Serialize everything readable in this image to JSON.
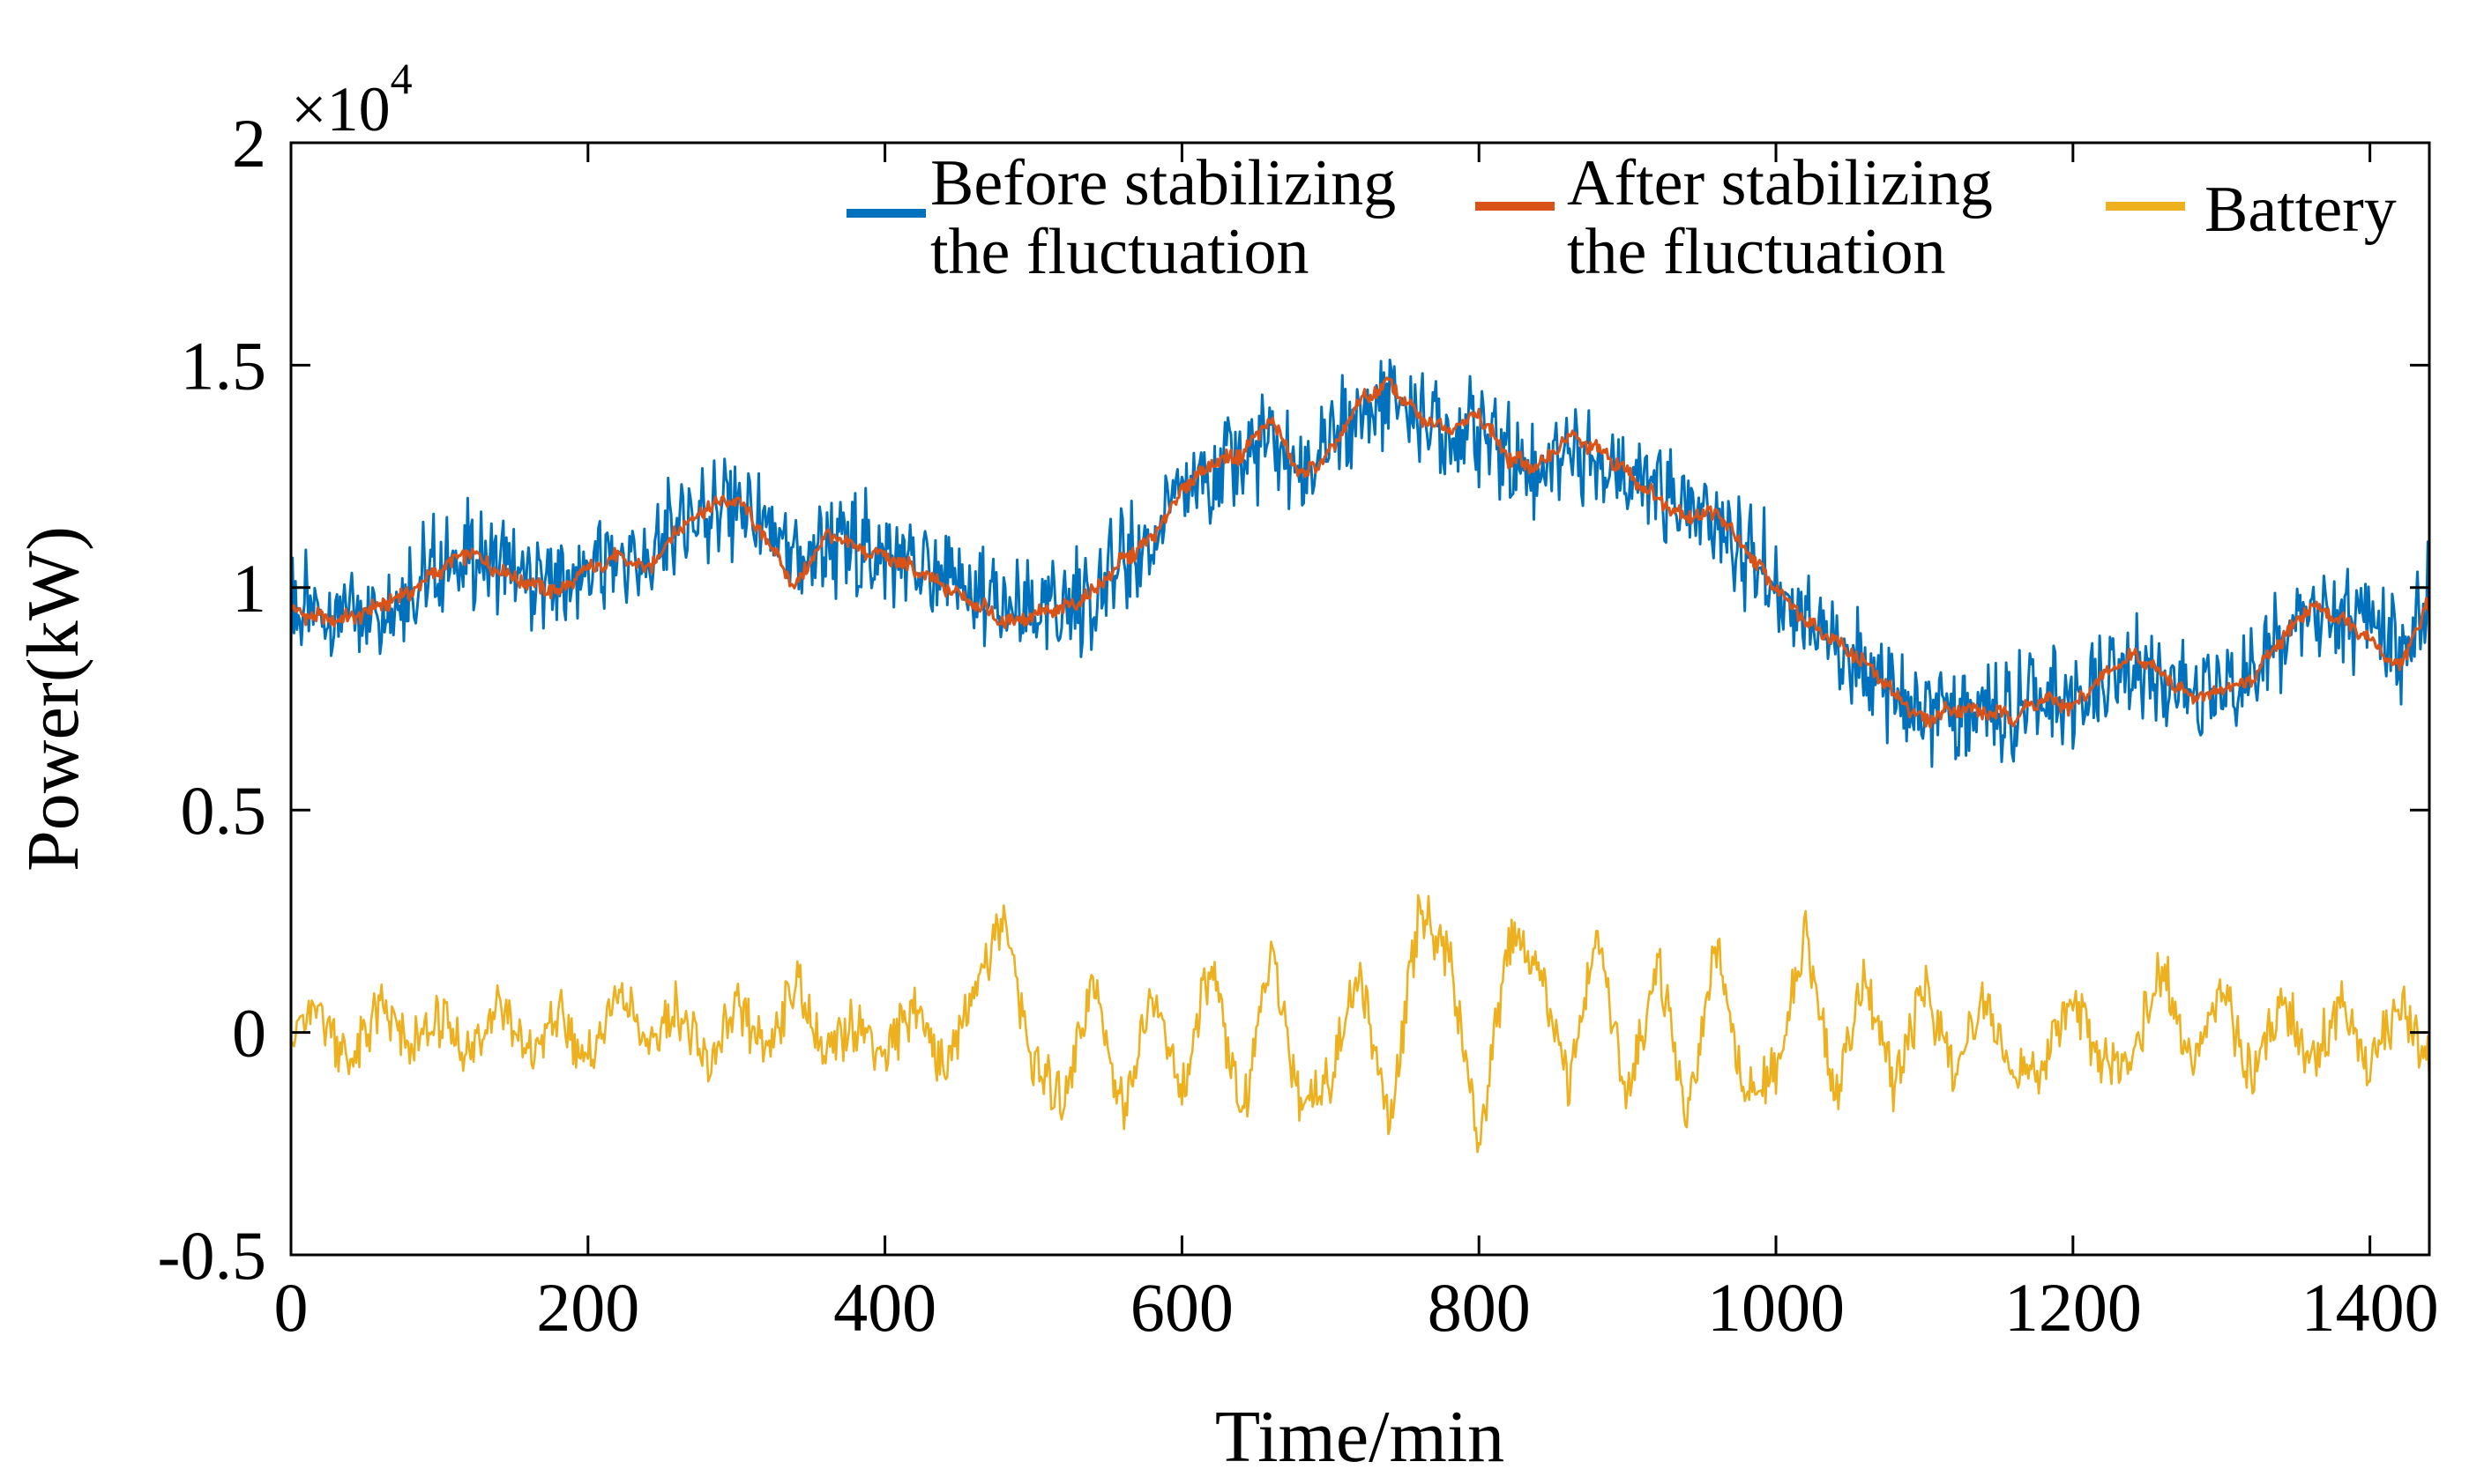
{
  "chart_data": {
    "type": "line",
    "title": "",
    "xlabel": "Time/min",
    "ylabel": "Power(kW)",
    "xlim": [
      0,
      1440
    ],
    "ylim": [
      -5000,
      20000
    ],
    "y_exponent_label": "×10",
    "y_exponent_power": "4",
    "xticks": [
      0,
      200,
      400,
      600,
      800,
      1000,
      1200,
      1400
    ],
    "xtick_labels": [
      "0",
      "200",
      "400",
      "600",
      "800",
      "1000",
      "1200",
      "1400"
    ],
    "yticks": [
      -5000,
      0,
      5000,
      10000,
      15000,
      20000
    ],
    "ytick_labels": [
      "-0.5",
      "0",
      "0.5",
      "1",
      "1.5",
      "2"
    ],
    "grid": false,
    "legend_position": "top-right",
    "series": [
      {
        "name": "Before stabilizing the fluctuation",
        "legend_lines": [
          "Before stabilizing",
          "the fluctuation"
        ],
        "color": "#0072BD",
        "x": [
          0,
          20,
          40,
          60,
          80,
          100,
          120,
          140,
          160,
          180,
          200,
          220,
          240,
          260,
          280,
          300,
          320,
          340,
          360,
          380,
          400,
          420,
          440,
          460,
          480,
          500,
          520,
          540,
          560,
          580,
          600,
          620,
          640,
          660,
          680,
          700,
          720,
          740,
          760,
          780,
          800,
          820,
          840,
          860,
          880,
          900,
          920,
          940,
          960,
          980,
          1000,
          1020,
          1040,
          1060,
          1080,
          1100,
          1120,
          1140,
          1160,
          1180,
          1200,
          1220,
          1240,
          1260,
          1280,
          1300,
          1320,
          1340,
          1360,
          1380,
          1400,
          1420,
          1440
        ],
        "values": [
          9600,
          9300,
          9400,
          9600,
          10000,
          10400,
          10700,
          10500,
          10200,
          10000,
          10400,
          10600,
          10500,
          11400,
          11800,
          11900,
          11200,
          10400,
          11000,
          10900,
          10700,
          10500,
          10200,
          9800,
          9400,
          9300,
          9600,
          9800,
          10600,
          11000,
          12200,
          12600,
          12900,
          13300,
          12500,
          13200,
          13800,
          14300,
          13900,
          13500,
          13600,
          13000,
          12600,
          13200,
          13000,
          12600,
          12100,
          11700,
          11500,
          10800,
          10100,
          9400,
          8600,
          8100,
          7500,
          7000,
          7200,
          7300,
          7100,
          7600,
          7400,
          7900,
          8300,
          8000,
          7600,
          7700,
          8200,
          8800,
          9500,
          9200,
          9300,
          8400,
          9800
        ]
      },
      {
        "name": "After stabilizing the fluctuation",
        "legend_lines": [
          "After stabilizing",
          "the fluctuation"
        ],
        "color": "#D95319",
        "x": [
          0,
          20,
          40,
          60,
          80,
          100,
          120,
          140,
          160,
          180,
          200,
          220,
          240,
          260,
          280,
          300,
          320,
          340,
          360,
          380,
          400,
          420,
          440,
          460,
          480,
          500,
          520,
          540,
          560,
          580,
          600,
          620,
          640,
          660,
          680,
          700,
          720,
          740,
          760,
          780,
          800,
          820,
          840,
          860,
          880,
          900,
          920,
          940,
          960,
          980,
          1000,
          1020,
          1040,
          1060,
          1080,
          1100,
          1120,
          1140,
          1160,
          1180,
          1200,
          1220,
          1240,
          1260,
          1280,
          1300,
          1320,
          1340,
          1360,
          1380,
          1400,
          1420,
          1440
        ],
        "values": [
          9500,
          9300,
          9300,
          9600,
          9900,
          10400,
          10800,
          10400,
          10100,
          9900,
          10400,
          10700,
          10400,
          11300,
          11800,
          12000,
          11100,
          10000,
          11200,
          10900,
          10700,
          10400,
          10000,
          9700,
          9200,
          9400,
          9500,
          9900,
          10600,
          11100,
          12200,
          12800,
          13000,
          13800,
          12500,
          13000,
          14200,
          14600,
          13800,
          13600,
          13900,
          12900,
          12700,
          13400,
          13100,
          12600,
          12000,
          11600,
          11700,
          10800,
          10000,
          9300,
          8800,
          8300,
          7600,
          7000,
          7300,
          7200,
          7100,
          7500,
          7300,
          8000,
          8500,
          8100,
          7500,
          7700,
          7900,
          8800,
          9600,
          9300,
          8800,
          8200,
          9700
        ]
      },
      {
        "name": "Battery",
        "legend_lines": [
          "Battery"
        ],
        "color": "#EDB120",
        "x": [
          0,
          20,
          40,
          60,
          80,
          100,
          120,
          140,
          160,
          180,
          200,
          220,
          240,
          260,
          280,
          300,
          320,
          340,
          360,
          380,
          400,
          420,
          440,
          460,
          480,
          500,
          520,
          540,
          560,
          580,
          600,
          620,
          640,
          660,
          680,
          700,
          720,
          740,
          760,
          780,
          800,
          820,
          840,
          860,
          880,
          900,
          920,
          940,
          960,
          980,
          1000,
          1020,
          1040,
          1060,
          1080,
          1100,
          1120,
          1140,
          1160,
          1180,
          1200,
          1220,
          1240,
          1260,
          1280,
          1300,
          1320,
          1340,
          1360,
          1380,
          1400,
          1420,
          1440
        ],
        "values": [
          0,
          500,
          -700,
          600,
          -400,
          300,
          -500,
          800,
          -600,
          400,
          -700,
          900,
          -300,
          600,
          -800,
          500,
          -400,
          1200,
          -600,
          300,
          -500,
          700,
          -900,
          1000,
          2600,
          -800,
          -1500,
          1200,
          -1800,
          900,
          -1400,
          1600,
          -2000,
          1800,
          -1600,
          -1000,
          1400,
          -2200,
          2800,
          1800,
          -2600,
          2200,
          1500,
          -1200,
          2300,
          -1700,
          1700,
          -2000,
          1900,
          -1500,
          -900,
          2200,
          -1600,
          1400,
          -1300,
          1100,
          -900,
          900,
          -1000,
          -700,
          700,
          -600,
          -500,
          1500,
          -800,
          900,
          -1000,
          800,
          -700,
          600,
          -800,
          700,
          -600
        ]
      }
    ]
  }
}
